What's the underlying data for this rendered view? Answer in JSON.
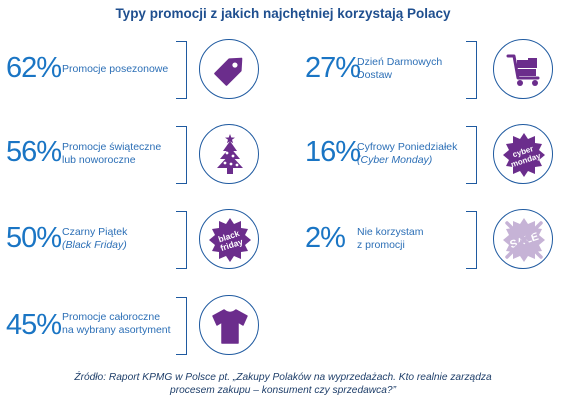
{
  "title": "Typy promocji z jakich najchętniej korzystają Polacy",
  "items": [
    {
      "percent": "62%",
      "line1": "Promocje posezonowe",
      "line2": "",
      "line2_italic": false,
      "icon": "price-tag-icon"
    },
    {
      "percent": "56%",
      "line1": "Promocje świąteczne",
      "line2": "lub noworoczne",
      "line2_italic": false,
      "icon": "christmas-tree-icon"
    },
    {
      "percent": "50%",
      "line1": "Czarny Piątek",
      "line2": "(Black Friday)",
      "line2_italic": true,
      "icon": "black-friday-badge-icon",
      "badge_text": [
        "black",
        "friday"
      ]
    },
    {
      "percent": "45%",
      "line1": "Promocje całoroczne",
      "line2": "na wybrany asortyment",
      "line2_italic": false,
      "icon": "tshirt-icon"
    },
    {
      "percent": "27%",
      "line1": "Dzień Darmowych",
      "line2": "Dostaw",
      "line2_italic": false,
      "icon": "hand-truck-icon"
    },
    {
      "percent": "16%",
      "line1": "Cyfrowy Poniedziałek",
      "line2": "(Cyber Monday)",
      "line2_italic": true,
      "icon": "cyber-monday-badge-icon",
      "badge_text": [
        "cyber",
        "monday"
      ]
    },
    {
      "percent": "2%",
      "line1": "Nie korzystam",
      "line2": "z promocji",
      "line2_italic": false,
      "icon": "crossed-sale-icon",
      "badge_text": [
        "SALE"
      ]
    }
  ],
  "footer": {
    "line1": "Źródło: Raport KPMG w Polsce pt. „Zakupy Polaków na wyprzedażach. Kto realnie zarządza",
    "line2": "procesem zakupu – konsument czy sprzedawca?”"
  },
  "colors": {
    "accent": "#1a75c4",
    "dark_blue": "#1f4f8f",
    "purple": "#6b2d8c",
    "purple_light": "#c6b3d6"
  }
}
